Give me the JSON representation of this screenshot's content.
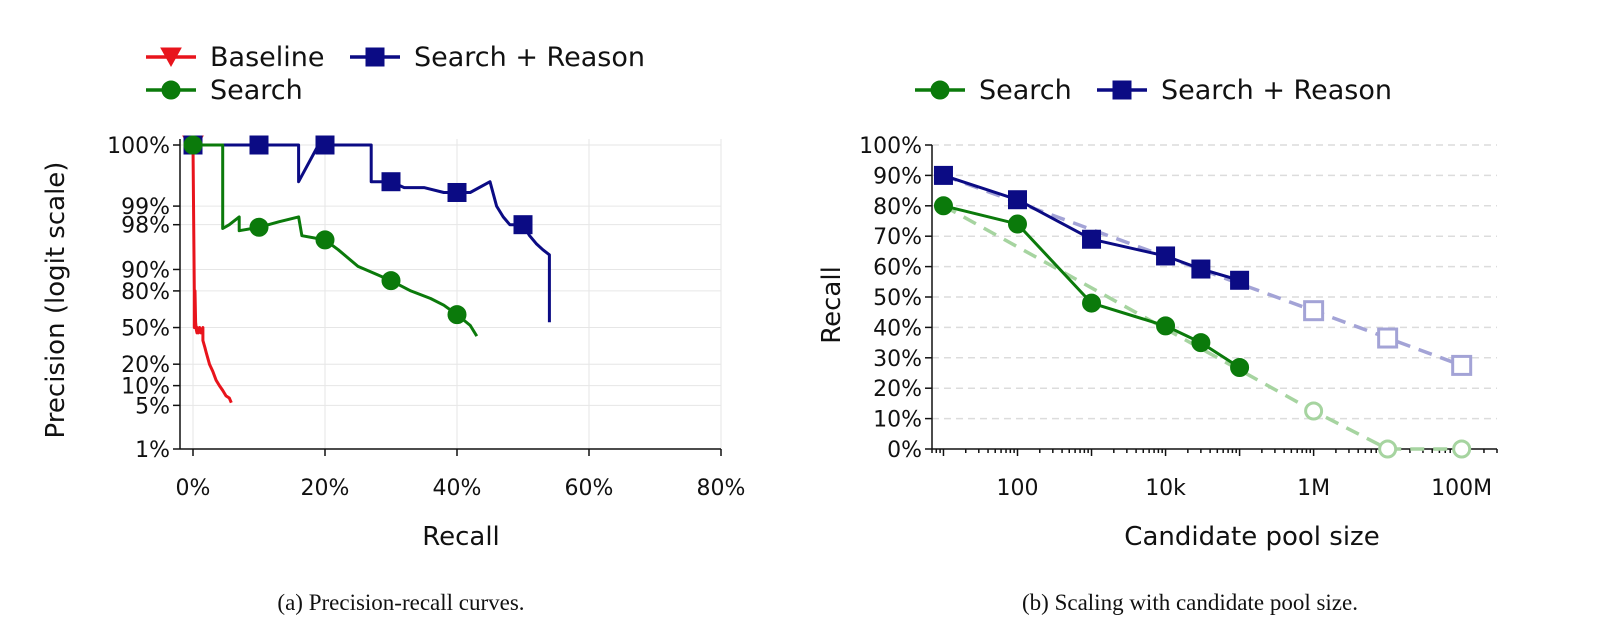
{
  "chart_data": [
    {
      "type": "line",
      "caption": "(a) Precision-recall curves.",
      "xlabel": "Recall",
      "ylabel": "Precision (logit scale)",
      "xscale": "linear",
      "yscale": "logit",
      "xlim": [
        0,
        0.8
      ],
      "ylim": [
        0.01,
        0.999
      ],
      "xticks": [
        0,
        0.2,
        0.4,
        0.6,
        0.8
      ],
      "xtick_labels": [
        "0%",
        "20%",
        "40%",
        "60%",
        "80%"
      ],
      "yticks": [
        0.01,
        0.05,
        0.1,
        0.2,
        0.5,
        0.8,
        0.9,
        0.98,
        0.99,
        0.999
      ],
      "ytick_labels": [
        "1%",
        "5%",
        "10%",
        "20%",
        "50%",
        "80%",
        "90%",
        "98%",
        "99%",
        "100%"
      ],
      "grid": true,
      "legend": "top-left",
      "legend_entries": [
        "Baseline",
        "Search + Reason",
        "Search"
      ],
      "series": [
        {
          "name": "Baseline",
          "color": "#e8141c",
          "marker": "triangle-down",
          "x": [
            0.0,
            0.001,
            0.002,
            0.002,
            0.003,
            0.003,
            0.004,
            0.005,
            0.006,
            0.006,
            0.008,
            0.01,
            0.012,
            0.015,
            0.015,
            0.018,
            0.02,
            0.025,
            0.03,
            0.035,
            0.04,
            0.045,
            0.05,
            0.055,
            0.058
          ],
          "y": [
            0.999,
            0.98,
            0.8,
            0.5,
            0.5,
            0.8,
            0.55,
            0.48,
            0.45,
            0.5,
            0.45,
            0.5,
            0.45,
            0.5,
            0.38,
            0.32,
            0.28,
            0.2,
            0.16,
            0.12,
            0.1,
            0.085,
            0.07,
            0.065,
            0.055
          ],
          "markers_at": [
            0.0
          ]
        },
        {
          "name": "Search + Reason",
          "color": "#0b0b84",
          "marker": "square",
          "x": [
            0.0,
            0.04,
            0.1,
            0.16,
            0.16,
            0.19,
            0.2,
            0.27,
            0.27,
            0.3,
            0.32,
            0.35,
            0.38,
            0.42,
            0.45,
            0.46,
            0.47,
            0.48,
            0.5,
            0.51,
            0.52,
            0.53,
            0.54,
            0.54
          ],
          "y": [
            0.999,
            0.999,
            0.999,
            0.999,
            0.996,
            0.999,
            0.999,
            0.999,
            0.996,
            0.996,
            0.995,
            0.995,
            0.994,
            0.994,
            0.996,
            0.99,
            0.985,
            0.98,
            0.98,
            0.97,
            0.96,
            0.95,
            0.94,
            0.55
          ],
          "markers_at": [
            0.0,
            0.1,
            0.2,
            0.3,
            0.4,
            0.5
          ]
        },
        {
          "name": "Search",
          "color": "#0b7a0b",
          "marker": "circle",
          "x": [
            0.0,
            0.04,
            0.045,
            0.045,
            0.055,
            0.07,
            0.07,
            0.1,
            0.13,
            0.16,
            0.165,
            0.2,
            0.22,
            0.25,
            0.28,
            0.3,
            0.33,
            0.36,
            0.38,
            0.4,
            0.42,
            0.43
          ],
          "y": [
            0.999,
            0.999,
            0.999,
            0.977,
            0.98,
            0.985,
            0.975,
            0.978,
            0.982,
            0.985,
            0.97,
            0.965,
            0.95,
            0.91,
            0.88,
            0.855,
            0.8,
            0.75,
            0.7,
            0.62,
            0.52,
            0.42
          ],
          "markers_at": [
            0.0,
            0.1,
            0.2,
            0.3,
            0.4
          ]
        }
      ]
    },
    {
      "type": "line",
      "caption": "(b) Scaling with candidate pool size.",
      "xlabel": "Candidate pool size",
      "ylabel": "Recall",
      "xscale": "log",
      "xlim": [
        7,
        300000000
      ],
      "ylim": [
        0,
        1
      ],
      "xticks": [
        100,
        10000,
        1000000,
        100000000
      ],
      "xtick_labels": [
        "100",
        "10k",
        "1M",
        "100M"
      ],
      "yticks": [
        0,
        0.1,
        0.2,
        0.3,
        0.4,
        0.5,
        0.6,
        0.7,
        0.8,
        0.9,
        1.0
      ],
      "ytick_labels": [
        "0%",
        "10%",
        "20%",
        "30%",
        "40%",
        "50%",
        "60%",
        "70%",
        "80%",
        "90%",
        "100%"
      ],
      "grid": true,
      "legend": "top",
      "legend_entries": [
        "Search",
        "Search + Reason"
      ],
      "series": [
        {
          "name": "Search",
          "color": "#0b7a0b",
          "marker": "circle",
          "x": [
            10,
            100,
            1000,
            10000,
            30000,
            100000
          ],
          "y": [
            0.8,
            0.74,
            0.48,
            0.405,
            0.35,
            0.268
          ]
        },
        {
          "name": "Search + Reason",
          "color": "#0b0b84",
          "marker": "square",
          "x": [
            10,
            100,
            1000,
            10000,
            30000,
            100000
          ],
          "y": [
            0.9,
            0.82,
            0.69,
            0.635,
            0.592,
            0.555
          ]
        }
      ],
      "extrapolations": [
        {
          "of": "Search",
          "color": "#a6d4a0",
          "marker": "circle-open",
          "x": [
            10,
            1000000,
            10000000,
            100000000
          ],
          "y": [
            0.8,
            0.125,
            0.0,
            0.0
          ]
        },
        {
          "of": "Search + Reason",
          "color": "#a3a3d6",
          "marker": "square-open",
          "x": [
            10,
            1000000,
            10000000,
            100000000
          ],
          "y": [
            0.9,
            0.455,
            0.365,
            0.275
          ]
        }
      ]
    }
  ]
}
